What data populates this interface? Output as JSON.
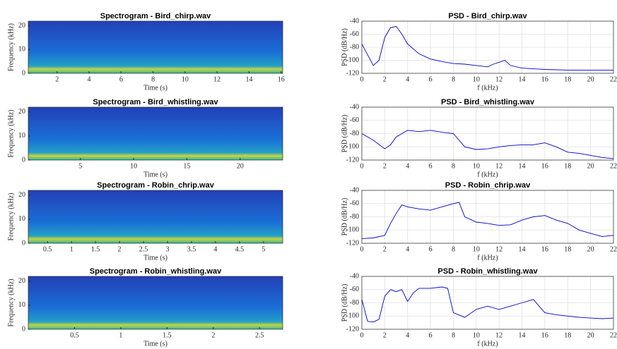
{
  "chart_data": [
    {
      "type": "spectrogram",
      "title": "Spectrogram - Bird_chirp.wav",
      "xlabel": "Time (s)",
      "ylabel": "Frequency (kHz)",
      "xlim": [
        0.2,
        16.1
      ],
      "ylim": [
        0,
        22
      ],
      "xticks": [
        2,
        4,
        6,
        8,
        10,
        12,
        14,
        16
      ],
      "yticks": [
        0,
        10,
        20
      ]
    },
    {
      "type": "line",
      "title": "PSD - Bird_chirp.wav",
      "xlabel": "f (kHz)",
      "ylabel": "PSD (dB/Hz)",
      "color": "#0000cc",
      "grid": true,
      "xlim": [
        0,
        22
      ],
      "ylim": [
        -120,
        -40
      ],
      "xticks": [
        0,
        2,
        4,
        6,
        8,
        10,
        12,
        14,
        16,
        18,
        20,
        22
      ],
      "yticks": [
        -120,
        -100,
        -80,
        -60,
        -40
      ],
      "x": [
        0,
        1,
        1.5,
        2,
        2.5,
        3,
        3.5,
        4,
        5,
        6,
        7,
        8,
        9,
        10,
        11,
        11.5,
        12,
        12.5,
        13,
        14,
        16,
        18,
        20,
        22
      ],
      "values": [
        -75,
        -108,
        -100,
        -65,
        -50,
        -48,
        -60,
        -75,
        -90,
        -98,
        -102,
        -105,
        -106,
        -108,
        -110,
        -106,
        -103,
        -100,
        -108,
        -112,
        -114,
        -115,
        -115,
        -115
      ]
    },
    {
      "type": "spectrogram",
      "title": "Spectrogram - Bird_whistling.wav",
      "xlabel": "Time (s)",
      "ylabel": "Frequency (kHz)",
      "xlim": [
        0.1,
        24
      ],
      "ylim": [
        0,
        22
      ],
      "xticks": [
        5,
        10,
        15,
        20
      ],
      "yticks": [
        0,
        10,
        20
      ]
    },
    {
      "type": "line",
      "title": "PSD - Bird_whistling.wav",
      "xlabel": "f (kHz)",
      "ylabel": "PSD (dB/Hz)",
      "color": "#0000cc",
      "grid": true,
      "xlim": [
        0,
        22
      ],
      "ylim": [
        -120,
        -40
      ],
      "xticks": [
        0,
        2,
        4,
        6,
        8,
        10,
        12,
        14,
        16,
        18,
        20,
        22
      ],
      "yticks": [
        -120,
        -100,
        -80,
        -60,
        -40
      ],
      "x": [
        0,
        1,
        2,
        2.5,
        3,
        4,
        5,
        6,
        7,
        8,
        9,
        10,
        11,
        12,
        13,
        14,
        15,
        16,
        17,
        18,
        19,
        20,
        21,
        22
      ],
      "values": [
        -80,
        -90,
        -103,
        -97,
        -85,
        -75,
        -77,
        -75,
        -78,
        -80,
        -100,
        -104,
        -103,
        -100,
        -98,
        -97,
        -97,
        -94,
        -100,
        -108,
        -110,
        -113,
        -116,
        -118
      ]
    },
    {
      "type": "spectrogram",
      "title": "Spectrogram - Robin_chrip.wav",
      "xlabel": "Time (s)",
      "ylabel": "Frequency (kHz)",
      "xlim": [
        0.1,
        5.4
      ],
      "ylim": [
        0,
        22
      ],
      "xticks": [
        0.5,
        1,
        1.5,
        2,
        2.5,
        3,
        3.5,
        4,
        4.5,
        5
      ],
      "yticks": [
        0,
        10,
        20
      ]
    },
    {
      "type": "line",
      "title": "PSD - Robin_chrip.wav",
      "xlabel": "f (kHz)",
      "ylabel": "PSD (dB/Hz)",
      "color": "#0000cc",
      "grid": true,
      "xlim": [
        0,
        22
      ],
      "ylim": [
        -120,
        -40
      ],
      "xticks": [
        0,
        2,
        4,
        6,
        8,
        10,
        12,
        14,
        16,
        18,
        20,
        22
      ],
      "yticks": [
        -120,
        -100,
        -80,
        -60,
        -40
      ],
      "x": [
        0,
        1,
        2,
        2.5,
        3,
        3.5,
        4,
        5,
        6,
        7,
        8,
        8.5,
        9,
        10,
        11,
        12,
        13,
        14,
        15,
        16,
        17,
        18,
        19,
        20,
        21,
        22
      ],
      "values": [
        -113,
        -112,
        -108,
        -90,
        -75,
        -62,
        -65,
        -68,
        -70,
        -65,
        -60,
        -58,
        -80,
        -88,
        -90,
        -93,
        -92,
        -85,
        -80,
        -78,
        -85,
        -90,
        -100,
        -105,
        -110,
        -108
      ]
    },
    {
      "type": "spectrogram",
      "title": "Spectrogram - Robin_whistling.wav",
      "xlabel": "Time (s)",
      "ylabel": "Frequency (kHz)",
      "xlim": [
        0,
        2.75
      ],
      "ylim": [
        0,
        22
      ],
      "xticks": [
        0.5,
        1,
        1.5,
        2,
        2.5
      ],
      "yticks": [
        0,
        10,
        20
      ]
    },
    {
      "type": "line",
      "title": "PSD - Robin_whistling.wav",
      "xlabel": "f (kHz)",
      "ylabel": "PSD (dB/Hz)",
      "color": "#0000cc",
      "grid": true,
      "xlim": [
        0,
        22
      ],
      "ylim": [
        -120,
        -40
      ],
      "xticks": [
        0,
        2,
        4,
        6,
        8,
        10,
        12,
        14,
        16,
        18,
        20,
        22
      ],
      "yticks": [
        -120,
        -100,
        -80,
        -60,
        -40
      ],
      "x": [
        0,
        0.5,
        1,
        1.5,
        2,
        2.5,
        3,
        3.5,
        4,
        4.5,
        5,
        6,
        7,
        7.5,
        8,
        9,
        10,
        11,
        12,
        13,
        14,
        15,
        16,
        17,
        18,
        19,
        20,
        21,
        22
      ],
      "values": [
        -75,
        -108,
        -109,
        -105,
        -70,
        -60,
        -63,
        -60,
        -78,
        -65,
        -58,
        -58,
        -56,
        -58,
        -95,
        -102,
        -90,
        -85,
        -90,
        -85,
        -80,
        -75,
        -95,
        -98,
        -100,
        -102,
        -103,
        -104,
        -103
      ]
    }
  ]
}
